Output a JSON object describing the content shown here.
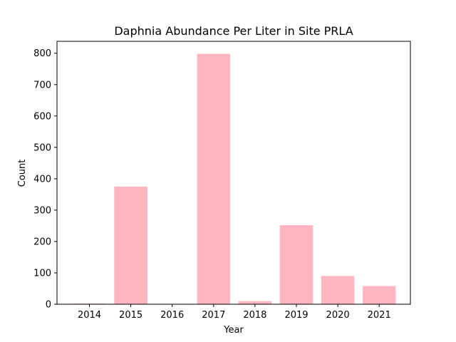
{
  "chart_data": {
    "type": "bar",
    "title": "Daphnia Abundance Per Liter in Site PRLA",
    "xlabel": "Year",
    "ylabel": "Count",
    "categories": [
      "2014",
      "2015",
      "2016",
      "2017",
      "2018",
      "2019",
      "2020",
      "2021"
    ],
    "values": [
      2,
      375,
      0,
      798,
      10,
      252,
      90,
      58
    ],
    "ylim": [
      0,
      838
    ],
    "yticks": [
      0,
      100,
      200,
      300,
      400,
      500,
      600,
      700,
      800
    ],
    "bar_color": "#ffb6c1",
    "grid": false,
    "legend": "none"
  }
}
